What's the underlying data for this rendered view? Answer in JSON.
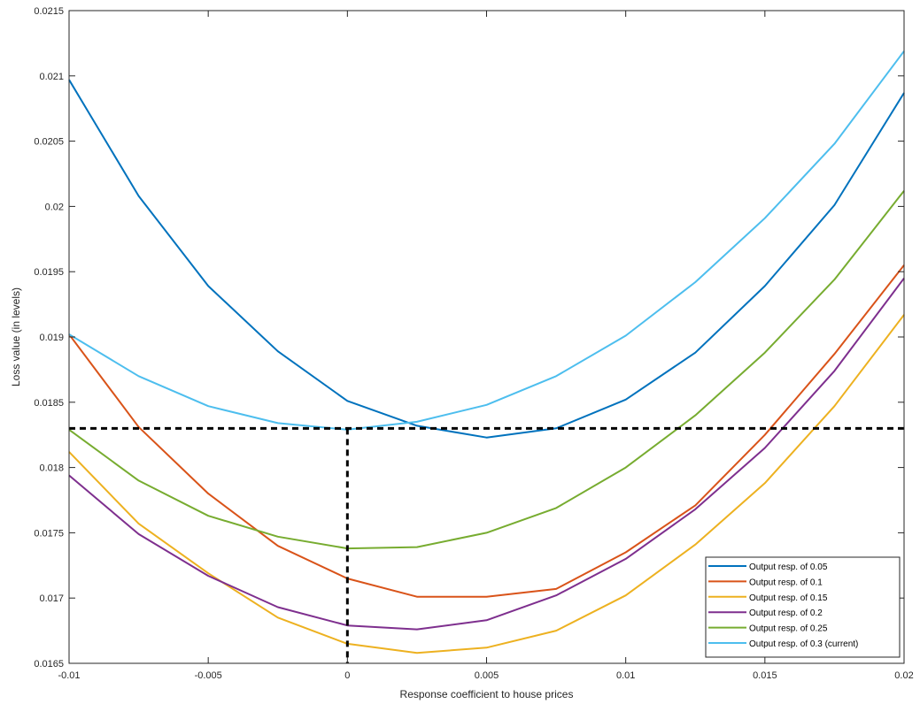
{
  "chart_data": {
    "type": "line",
    "xlabel": "Response coefficient to house prices",
    "ylabel": "Loss value (in levels)",
    "xlim": [
      -0.01,
      0.02
    ],
    "ylim": [
      0.0165,
      0.0215
    ],
    "xticks": [
      -0.01,
      -0.005,
      0,
      0.005,
      0.01,
      0.015,
      0.02
    ],
    "xtick_labels": [
      "-0.01",
      "-0.005",
      "0",
      "0.005",
      "0.01",
      "0.015",
      "0.02"
    ],
    "yticks": [
      0.0165,
      0.017,
      0.0175,
      0.018,
      0.0185,
      0.019,
      0.0195,
      0.02,
      0.0205,
      0.021,
      0.0215
    ],
    "ytick_labels": [
      "0.0165",
      "0.017",
      "0.0175",
      "0.018",
      "0.0185",
      "0.019",
      "0.0195",
      "0.02",
      "0.0205",
      "0.021",
      "0.0215"
    ],
    "grid": false,
    "legend_position": "bottom-right",
    "x": [
      -0.01,
      -0.0075,
      -0.005,
      -0.0025,
      0,
      0.0025,
      0.005,
      0.0075,
      0.01,
      0.0125,
      0.015,
      0.0175,
      0.02
    ],
    "series": [
      {
        "name": "Output resp. of 0.05",
        "color": "#0072BD",
        "values": [
          0.02097,
          0.02008,
          0.01939,
          0.01889,
          0.01851,
          0.01832,
          0.01823,
          0.0183,
          0.01852,
          0.01888,
          0.01939,
          0.02001,
          0.02087
        ]
      },
      {
        "name": "Output resp. of 0.1",
        "color": "#D95319",
        "values": [
          0.01902,
          0.01831,
          0.0178,
          0.0174,
          0.01715,
          0.01701,
          0.01701,
          0.01707,
          0.01735,
          0.01771,
          0.01825,
          0.01887,
          0.01955
        ]
      },
      {
        "name": "Output resp. of 0.15",
        "color": "#EDB120",
        "values": [
          0.01812,
          0.01757,
          0.01719,
          0.01685,
          0.01665,
          0.01658,
          0.01662,
          0.01675,
          0.01702,
          0.01741,
          0.01788,
          0.01847,
          0.01917
        ]
      },
      {
        "name": "Output resp. of 0.2",
        "color": "#7E2F8E",
        "values": [
          0.01794,
          0.01749,
          0.01717,
          0.01693,
          0.01679,
          0.01676,
          0.01683,
          0.01702,
          0.0173,
          0.01768,
          0.01815,
          0.01874,
          0.01945
        ]
      },
      {
        "name": "Output resp. of 0.25",
        "color": "#77AC30",
        "values": [
          0.01829,
          0.0179,
          0.01763,
          0.01747,
          0.01738,
          0.01739,
          0.0175,
          0.01769,
          0.018,
          0.0184,
          0.01888,
          0.01944,
          0.02012
        ]
      },
      {
        "name": "Output resp. of 0.3 (current)",
        "color": "#4DBEEE",
        "values": [
          0.01902,
          0.0187,
          0.01847,
          0.01834,
          0.01829,
          0.01835,
          0.01848,
          0.0187,
          0.01901,
          0.01942,
          0.01991,
          0.02048,
          0.02119
        ]
      }
    ],
    "reference_lines": [
      {
        "orientation": "horizontal",
        "y": 0.0183,
        "style": "dashed",
        "color": "#000000"
      },
      {
        "orientation": "vertical",
        "x": 0,
        "y_from": 0.0165,
        "y_to": 0.0183,
        "style": "dashed",
        "color": "#000000"
      }
    ]
  }
}
